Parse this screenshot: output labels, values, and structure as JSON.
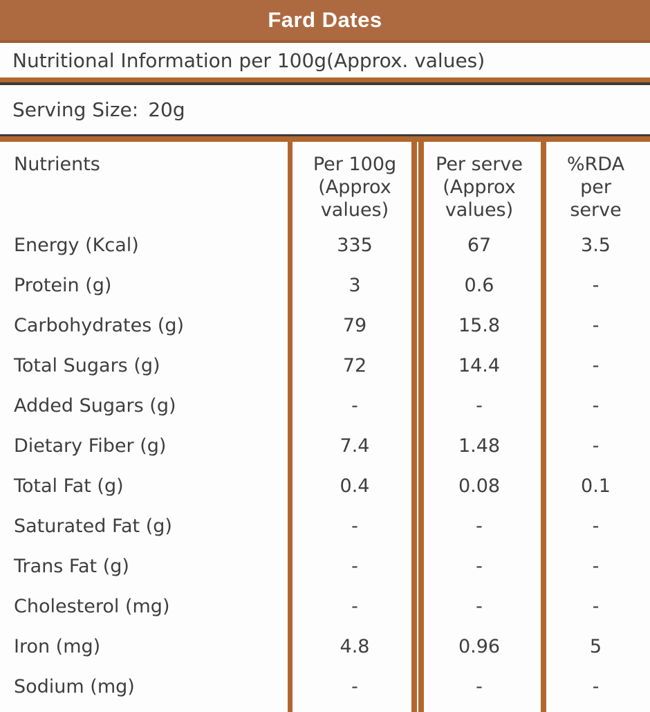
{
  "header": {
    "title": "Fard Dates"
  },
  "subtitle": "Nutritional Information per 100g(Approx. values)",
  "serving": {
    "label": "Serving Size:",
    "value": "20g"
  },
  "table": {
    "headers": [
      "Nutrients",
      "Per 100g\n(Approx\nvalues)",
      "Per serve\n(Approx\nvalues)",
      "%RDA\nper\nserve"
    ],
    "rows": [
      {
        "nutrient": "Energy (Kcal)",
        "per_100g": "335",
        "per_serve": "67",
        "rda_per_serve": "3.5"
      },
      {
        "nutrient": "Protein (g)",
        "per_100g": "3",
        "per_serve": "0.6",
        "rda_per_serve": "-"
      },
      {
        "nutrient": "Carbohydrates (g)",
        "per_100g": "79",
        "per_serve": "15.8",
        "rda_per_serve": "-"
      },
      {
        "nutrient": "Total Sugars (g)",
        "per_100g": "72",
        "per_serve": "14.4",
        "rda_per_serve": "-"
      },
      {
        "nutrient": "Added Sugars (g)",
        "per_100g": "-",
        "per_serve": "-",
        "rda_per_serve": "-"
      },
      {
        "nutrient": "Dietary Fiber (g)",
        "per_100g": "7.4",
        "per_serve": "1.48",
        "rda_per_serve": "-"
      },
      {
        "nutrient": "Total Fat (g)",
        "per_100g": "0.4",
        "per_serve": "0.08",
        "rda_per_serve": "0.1"
      },
      {
        "nutrient": "Saturated Fat (g)",
        "per_100g": "-",
        "per_serve": "-",
        "rda_per_serve": "-"
      },
      {
        "nutrient": "Trans Fat (g)",
        "per_100g": "-",
        "per_serve": "-",
        "rda_per_serve": "-"
      },
      {
        "nutrient": "Cholesterol (mg)",
        "per_100g": "-",
        "per_serve": "-",
        "rda_per_serve": "-"
      },
      {
        "nutrient": "Iron (mg)",
        "per_100g": "4.8",
        "per_serve": "0.96",
        "rda_per_serve": "5"
      },
      {
        "nutrient": "Sodium (mg)",
        "per_100g": "-",
        "per_serve": "-",
        "rda_per_serve": "-"
      }
    ]
  },
  "colors": {
    "brand_brown": "#ad6a41",
    "line_brown": "#b2672f",
    "dark_line": "#3b3b3b",
    "text": "#3e3e3e",
    "title_text": "#ffffff"
  }
}
